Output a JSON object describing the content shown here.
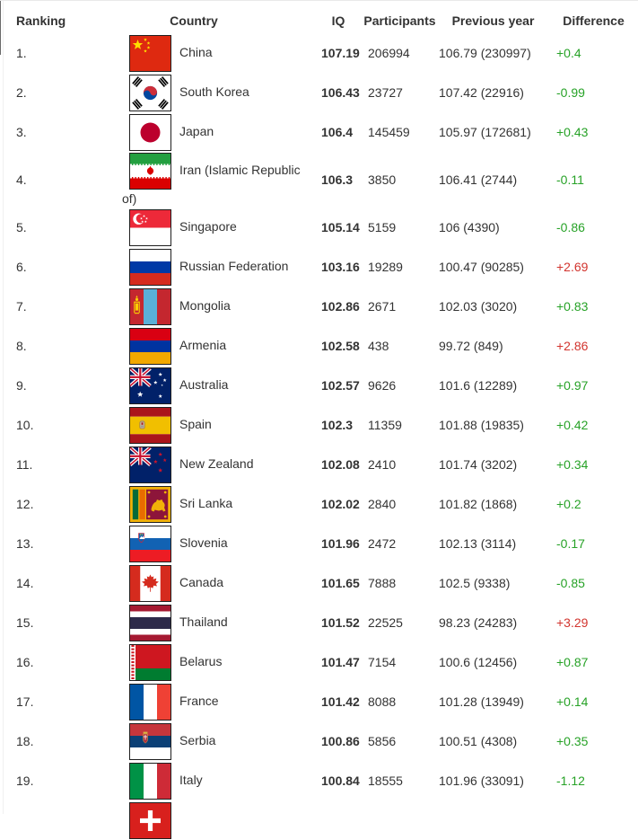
{
  "table": {
    "headers": {
      "ranking": "Ranking",
      "country": "Country",
      "iq": "IQ",
      "participants": "Participants",
      "previous_year": "Previous year",
      "difference": "Difference"
    },
    "colors": {
      "green": "#27a227",
      "red": "#d2342e"
    },
    "rows": [
      {
        "rank": "1.",
        "flag": "china",
        "country": "China",
        "iq": "107.19",
        "participants": "206994",
        "previous_year": "106.79 (230997)",
        "difference": "+0.4",
        "diff_color": "green"
      },
      {
        "rank": "2.",
        "flag": "southkorea",
        "country": "South Korea",
        "iq": "106.43",
        "participants": "23727",
        "previous_year": "107.42 (22916)",
        "difference": "-0.99",
        "diff_color": "green"
      },
      {
        "rank": "3.",
        "flag": "japan",
        "country": "Japan",
        "iq": "106.4",
        "participants": "145459",
        "previous_year": "105.97 (172681)",
        "difference": "+0.43",
        "diff_color": "green"
      },
      {
        "rank": "4.",
        "flag": "iran",
        "country": "Iran (Islamic Republic of)",
        "iq": "106.3",
        "participants": "3850",
        "previous_year": "106.41 (2744)",
        "difference": "-0.11",
        "diff_color": "green"
      },
      {
        "rank": "5.",
        "flag": "singapore",
        "country": "Singapore",
        "iq": "105.14",
        "participants": "5159",
        "previous_year": "106 (4390)",
        "difference": "-0.86",
        "diff_color": "green"
      },
      {
        "rank": "6.",
        "flag": "russia",
        "country": "Russian Federation",
        "iq": "103.16",
        "participants": "19289",
        "previous_year": "100.47 (90285)",
        "difference": "+2.69",
        "diff_color": "red"
      },
      {
        "rank": "7.",
        "flag": "mongolia",
        "country": "Mongolia",
        "iq": "102.86",
        "participants": "2671",
        "previous_year": "102.03 (3020)",
        "difference": "+0.83",
        "diff_color": "green"
      },
      {
        "rank": "8.",
        "flag": "armenia",
        "country": "Armenia",
        "iq": "102.58",
        "participants": "438",
        "previous_year": "99.72 (849)",
        "difference": "+2.86",
        "diff_color": "red"
      },
      {
        "rank": "9.",
        "flag": "australia",
        "country": "Australia",
        "iq": "102.57",
        "participants": "9626",
        "previous_year": "101.6 (12289)",
        "difference": "+0.97",
        "diff_color": "green"
      },
      {
        "rank": "10.",
        "flag": "spain",
        "country": "Spain",
        "iq": "102.3",
        "participants": "11359",
        "previous_year": "101.88 (19835)",
        "difference": "+0.42",
        "diff_color": "green"
      },
      {
        "rank": "11.",
        "flag": "newzealand",
        "country": "New Zealand",
        "iq": "102.08",
        "participants": "2410",
        "previous_year": "101.74 (3202)",
        "difference": "+0.34",
        "diff_color": "green"
      },
      {
        "rank": "12.",
        "flag": "srilanka",
        "country": "Sri Lanka",
        "iq": "102.02",
        "participants": "2840",
        "previous_year": "101.82 (1868)",
        "difference": "+0.2",
        "diff_color": "green"
      },
      {
        "rank": "13.",
        "flag": "slovenia",
        "country": "Slovenia",
        "iq": "101.96",
        "participants": "2472",
        "previous_year": "102.13 (3114)",
        "difference": "-0.17",
        "diff_color": "green"
      },
      {
        "rank": "14.",
        "flag": "canada",
        "country": "Canada",
        "iq": "101.65",
        "participants": "7888",
        "previous_year": "102.5 (9338)",
        "difference": "-0.85",
        "diff_color": "green"
      },
      {
        "rank": "15.",
        "flag": "thailand",
        "country": "Thailand",
        "iq": "101.52",
        "participants": "22525",
        "previous_year": "98.23 (24283)",
        "difference": "+3.29",
        "diff_color": "red"
      },
      {
        "rank": "16.",
        "flag": "belarus",
        "country": "Belarus",
        "iq": "101.47",
        "participants": "7154",
        "previous_year": "100.6 (12456)",
        "difference": "+0.87",
        "diff_color": "green"
      },
      {
        "rank": "17.",
        "flag": "france",
        "country": "France",
        "iq": "101.42",
        "participants": "8088",
        "previous_year": "101.28 (13949)",
        "difference": "+0.14",
        "diff_color": "green"
      },
      {
        "rank": "18.",
        "flag": "serbia",
        "country": "Serbia",
        "iq": "100.86",
        "participants": "5856",
        "previous_year": "100.51 (4308)",
        "difference": "+0.35",
        "diff_color": "green"
      },
      {
        "rank": "19.",
        "flag": "italy",
        "country": "Italy",
        "iq": "100.84",
        "participants": "18555",
        "previous_year": "101.96 (33091)",
        "difference": "-1.12",
        "diff_color": "green"
      },
      {
        "rank": "",
        "flag": "switzerland",
        "country": "",
        "iq": "",
        "participants": "",
        "previous_year": "",
        "difference": "",
        "diff_color": "green"
      }
    ]
  }
}
